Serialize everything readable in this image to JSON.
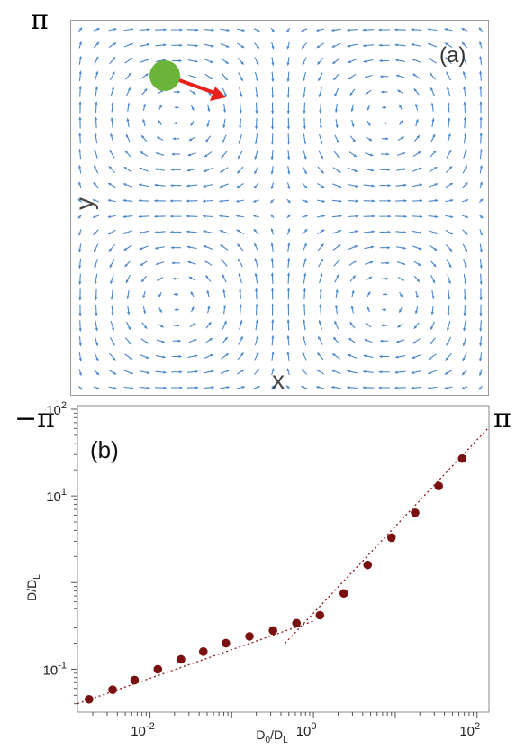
{
  "panel_a": {
    "label": "(a)",
    "x_axis_label": "x",
    "y_axis_label": "y",
    "top_left_range": "π",
    "bottom_left_range": "−π",
    "bottom_right_range": "π",
    "colors": {
      "vector": "#4a86c8",
      "particle": "#6bb43a",
      "heading_arrow": "#e8211d"
    },
    "chart_data": {
      "type": "quiver",
      "field": "cellular-vortex",
      "x_range": [
        -3.14159,
        3.14159
      ],
      "y_range": [
        -3.14159,
        3.14159
      ],
      "vortices": 4
    }
  },
  "panel_b": {
    "label": "(b)",
    "xlabel": "D",
    "xlabel_sub_num": "0",
    "xlabel_sep": "/D",
    "xlabel_sub_den": "L",
    "ylabel": "D/D",
    "ylabel_sub": "L",
    "x_ticks": [
      {
        "base": "10",
        "exp": "-2",
        "value": 0.01
      },
      {
        "base": "10",
        "exp": "0",
        "value": 1
      },
      {
        "base": "10",
        "exp": "2",
        "value": 100
      }
    ],
    "y_ticks": [
      {
        "base": "10",
        "exp": "-1",
        "value": 0.1
      },
      {
        "base": "10",
        "exp": "1",
        "value": 10
      },
      {
        "base": "10",
        "exp": "2",
        "value": 100
      }
    ],
    "colors": {
      "points": "#7b1010",
      "fit": "#8b1a1a"
    },
    "chart_data": {
      "type": "scatter",
      "xscale": "log",
      "yscale": "log",
      "xlim": [
        0.0013,
        140
      ],
      "ylim": [
        0.032,
        110
      ],
      "series": [
        {
          "x": [
            0.0018,
            0.0035,
            0.0065,
            0.0125,
            0.024,
            0.045,
            0.085,
            0.165,
            0.32,
            0.62,
            1.2,
            2.35,
            4.6,
            9.0,
            17.5,
            34,
            66
          ],
          "y": [
            0.045,
            0.058,
            0.075,
            0.1,
            0.13,
            0.16,
            0.2,
            0.24,
            0.28,
            0.34,
            0.42,
            0.75,
            1.6,
            3.3,
            6.4,
            13,
            27
          ]
        }
      ],
      "fit_lines": [
        {
          "style": "dotted",
          "x": [
            0.0013,
            1.0
          ],
          "y": [
            0.04,
            0.36
          ]
        },
        {
          "style": "dotted",
          "x": [
            0.45,
            140
          ],
          "y": [
            0.2,
            62
          ]
        }
      ]
    }
  }
}
